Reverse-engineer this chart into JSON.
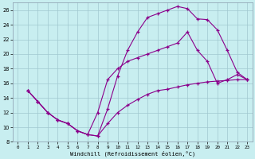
{
  "xlabel": "Windchill (Refroidissement éolien,°C)",
  "bg_color": "#c8eef0",
  "grid_color": "#a0c8d0",
  "line_color": "#8B008B",
  "xlim": [
    -0.5,
    23.5
  ],
  "ylim": [
    8,
    27
  ],
  "xticks": [
    0,
    1,
    2,
    3,
    4,
    5,
    6,
    7,
    8,
    9,
    10,
    11,
    12,
    13,
    14,
    15,
    16,
    17,
    18,
    19,
    20,
    21,
    22,
    23
  ],
  "yticks": [
    8,
    10,
    12,
    14,
    16,
    18,
    20,
    22,
    24,
    26
  ],
  "series1_x": [
    1,
    2,
    3,
    4,
    5,
    6,
    7,
    8,
    9,
    10,
    11,
    12,
    13,
    14,
    15,
    16,
    17,
    18,
    19,
    20,
    21,
    22,
    23
  ],
  "series1_y": [
    15,
    13.5,
    12,
    11,
    10.5,
    9.5,
    9,
    8.8,
    12.5,
    17,
    20.5,
    23,
    25,
    25.5,
    26,
    26.5,
    26.2,
    24.8,
    24.7,
    23.3,
    20.5,
    17.5,
    16.5
  ],
  "series2_x": [
    1,
    2,
    3,
    4,
    5,
    6,
    7,
    8,
    9,
    10,
    11,
    12,
    13,
    14,
    15,
    16,
    17,
    18,
    19,
    20,
    21,
    22,
    23
  ],
  "series2_y": [
    15,
    13.5,
    12,
    11,
    10.5,
    9.5,
    9,
    12,
    16.5,
    18,
    19,
    19.5,
    20,
    20.5,
    21,
    21.5,
    23,
    20.5,
    19,
    16,
    16.5,
    17.2,
    16.5
  ],
  "series3_x": [
    1,
    2,
    3,
    4,
    5,
    6,
    7,
    8,
    9,
    10,
    11,
    12,
    13,
    14,
    15,
    16,
    17,
    18,
    19,
    20,
    21,
    22,
    23
  ],
  "series3_y": [
    15,
    13.5,
    12,
    11,
    10.5,
    9.5,
    9,
    8.8,
    10.5,
    12,
    13.0,
    13.8,
    14.5,
    15.0,
    15.2,
    15.5,
    15.8,
    16.0,
    16.2,
    16.3,
    16.4,
    16.5,
    16.5
  ]
}
